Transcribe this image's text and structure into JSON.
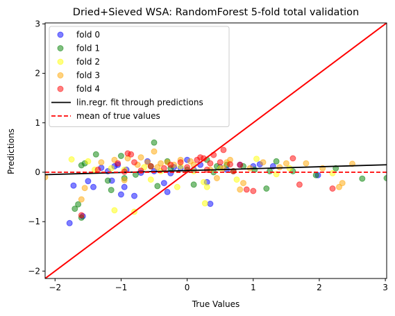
{
  "chart_data": {
    "type": "scatter",
    "title": "Dried+Sieved WSA: RandomForest 5-fold total validation",
    "xlabel": "True Values",
    "ylabel": "Predictions",
    "xlim": [
      -2.15,
      3.02
    ],
    "ylim": [
      -2.15,
      3.02
    ],
    "xticks": [
      -2,
      -1,
      0,
      1,
      2,
      3
    ],
    "yticks": [
      -2,
      -1,
      0,
      1,
      2,
      3
    ],
    "grid": false,
    "legend_position": "top-left",
    "series": [
      {
        "name": "fold 0",
        "color": "#0000ff",
        "points": [
          [
            -1.78,
            -1.03
          ],
          [
            -1.72,
            -0.27
          ],
          [
            -1.58,
            -0.89
          ],
          [
            -1.5,
            -0.18
          ],
          [
            -1.42,
            -0.3
          ],
          [
            -1.3,
            0.09
          ],
          [
            -1.2,
            0.02
          ],
          [
            -1.14,
            -0.17
          ],
          [
            -1.1,
            0.12
          ],
          [
            -1.05,
            0.15
          ],
          [
            -1.0,
            -0.45
          ],
          [
            -0.95,
            -0.3
          ],
          [
            -0.92,
            0.05
          ],
          [
            -0.8,
            -0.48
          ],
          [
            -0.7,
            -0.01
          ],
          [
            -0.6,
            0.22
          ],
          [
            -0.5,
            0.02
          ],
          [
            -0.35,
            -0.22
          ],
          [
            -0.3,
            -0.4
          ],
          [
            -0.25,
            -0.02
          ],
          [
            -0.2,
            0.1
          ],
          [
            -0.1,
            0.08
          ],
          [
            0.0,
            0.25
          ],
          [
            0.1,
            0.05
          ],
          [
            0.2,
            0.15
          ],
          [
            0.3,
            -0.2
          ],
          [
            0.35,
            -0.64
          ],
          [
            0.5,
            0.1
          ],
          [
            0.6,
            0.05
          ],
          [
            0.8,
            0.15
          ],
          [
            1.0,
            0.12
          ],
          [
            1.1,
            0.16
          ],
          [
            1.3,
            0.12
          ],
          [
            1.98,
            -0.06
          ]
        ]
      },
      {
        "name": "fold 1",
        "color": "#008000",
        "points": [
          [
            -1.7,
            -0.74
          ],
          [
            -1.65,
            -0.65
          ],
          [
            -1.6,
            -0.92
          ],
          [
            -1.6,
            0.14
          ],
          [
            -1.55,
            0.18
          ],
          [
            -1.38,
            0.36
          ],
          [
            -1.2,
            -0.17
          ],
          [
            -1.15,
            -0.36
          ],
          [
            -1.0,
            0.33
          ],
          [
            -0.95,
            -0.12
          ],
          [
            -0.78,
            -0.05
          ],
          [
            -0.55,
            0.12
          ],
          [
            -0.5,
            0.6
          ],
          [
            -0.45,
            -0.28
          ],
          [
            -0.3,
            0.22
          ],
          [
            -0.25,
            0.08
          ],
          [
            0.0,
            0.05
          ],
          [
            0.1,
            -0.25
          ],
          [
            0.3,
            0.25
          ],
          [
            0.4,
            0.0
          ],
          [
            0.45,
            0.12
          ],
          [
            0.6,
            0.15
          ],
          [
            0.7,
            0.02
          ],
          [
            0.85,
            0.12
          ],
          [
            1.02,
            0.05
          ],
          [
            1.2,
            -0.33
          ],
          [
            1.25,
            0.02
          ],
          [
            1.35,
            0.22
          ],
          [
            1.6,
            0.02
          ],
          [
            1.95,
            -0.06
          ],
          [
            2.25,
            0.08
          ],
          [
            2.65,
            -0.13
          ],
          [
            3.02,
            -0.12
          ]
        ]
      },
      {
        "name": "fold 2",
        "color": "#ffff00",
        "points": [
          [
            -1.75,
            0.26
          ],
          [
            -1.5,
            0.22
          ],
          [
            -1.4,
            0.05
          ],
          [
            -1.15,
            0.08
          ],
          [
            -1.1,
            -0.77
          ],
          [
            -0.95,
            0.05
          ],
          [
            -0.8,
            -0.8
          ],
          [
            -0.65,
            0.1
          ],
          [
            -0.55,
            -0.15
          ],
          [
            -0.4,
            0.02
          ],
          [
            -0.15,
            -0.3
          ],
          [
            -0.1,
            0.12
          ],
          [
            0.1,
            0.02
          ],
          [
            0.25,
            -0.2
          ],
          [
            0.27,
            -0.63
          ],
          [
            0.3,
            -0.3
          ],
          [
            0.5,
            0.08
          ],
          [
            0.75,
            -0.15
          ],
          [
            1.05,
            0.27
          ],
          [
            1.35,
            -0.04
          ],
          [
            1.55,
            0.08
          ],
          [
            2.2,
            -0.02
          ]
        ]
      },
      {
        "name": "fold 3",
        "color": "#ffa500",
        "points": [
          [
            -2.15,
            -0.1
          ],
          [
            -1.6,
            -0.55
          ],
          [
            -1.55,
            -0.32
          ],
          [
            -1.3,
            0.2
          ],
          [
            -1.1,
            0.25
          ],
          [
            -0.95,
            -0.16
          ],
          [
            -0.9,
            0.28
          ],
          [
            -0.75,
            0.15
          ],
          [
            -0.7,
            0.3
          ],
          [
            -0.6,
            0.2
          ],
          [
            -0.5,
            0.42
          ],
          [
            -0.45,
            0.1
          ],
          [
            -0.4,
            0.18
          ],
          [
            -0.3,
            0.2
          ],
          [
            -0.2,
            0.15
          ],
          [
            -0.1,
            0.25
          ],
          [
            0.05,
            0.22
          ],
          [
            0.1,
            0.15
          ],
          [
            0.35,
            0.05
          ],
          [
            0.45,
            -0.12
          ],
          [
            0.55,
            0.08
          ],
          [
            0.6,
            0.2
          ],
          [
            0.65,
            0.25
          ],
          [
            0.8,
            -0.35
          ],
          [
            0.85,
            -0.22
          ],
          [
            0.95,
            0.08
          ],
          [
            1.15,
            0.2
          ],
          [
            1.4,
            0.1
          ],
          [
            1.5,
            0.18
          ],
          [
            1.8,
            0.18
          ],
          [
            2.05,
            0.08
          ],
          [
            2.3,
            -0.3
          ],
          [
            2.35,
            -0.22
          ],
          [
            2.5,
            0.17
          ]
        ]
      },
      {
        "name": "fold 4",
        "color": "#ff0000",
        "points": [
          [
            -1.6,
            -0.87
          ],
          [
            -1.35,
            0.05
          ],
          [
            -1.05,
            0.18
          ],
          [
            -0.95,
            0.01
          ],
          [
            -0.9,
            0.38
          ],
          [
            -0.85,
            0.36
          ],
          [
            -0.8,
            0.2
          ],
          [
            -0.7,
            0.03
          ],
          [
            -0.55,
            0.12
          ],
          [
            -0.35,
            0.08
          ],
          [
            -0.25,
            0.15
          ],
          [
            -0.1,
            0.2
          ],
          [
            0.0,
            0.1
          ],
          [
            0.15,
            0.25
          ],
          [
            0.2,
            0.3
          ],
          [
            0.25,
            0.28
          ],
          [
            0.3,
            0.05
          ],
          [
            0.35,
            0.18
          ],
          [
            0.4,
            0.35
          ],
          [
            0.5,
            0.2
          ],
          [
            0.55,
            0.45
          ],
          [
            0.65,
            0.16
          ],
          [
            0.7,
            0.02
          ],
          [
            0.8,
            0.15
          ],
          [
            0.9,
            -0.35
          ],
          [
            1.0,
            -0.38
          ],
          [
            1.6,
            0.28
          ],
          [
            1.7,
            -0.25
          ],
          [
            2.2,
            -0.33
          ]
        ]
      }
    ],
    "lines": [
      {
        "name": "lin.regr. fit through predictions",
        "color": "#000000",
        "style": "solid",
        "x": [
          -2.15,
          3.02
        ],
        "y": [
          -0.05,
          0.15
        ]
      },
      {
        "name": "mean of true values",
        "color": "#ff0000",
        "style": "dashed",
        "x": [
          -2.15,
          3.02
        ],
        "y": [
          0.0,
          0.0
        ]
      }
    ],
    "identity_line": {
      "color": "#ff0000",
      "x": [
        -2.15,
        3.02
      ],
      "y": [
        -2.15,
        3.02
      ]
    }
  }
}
